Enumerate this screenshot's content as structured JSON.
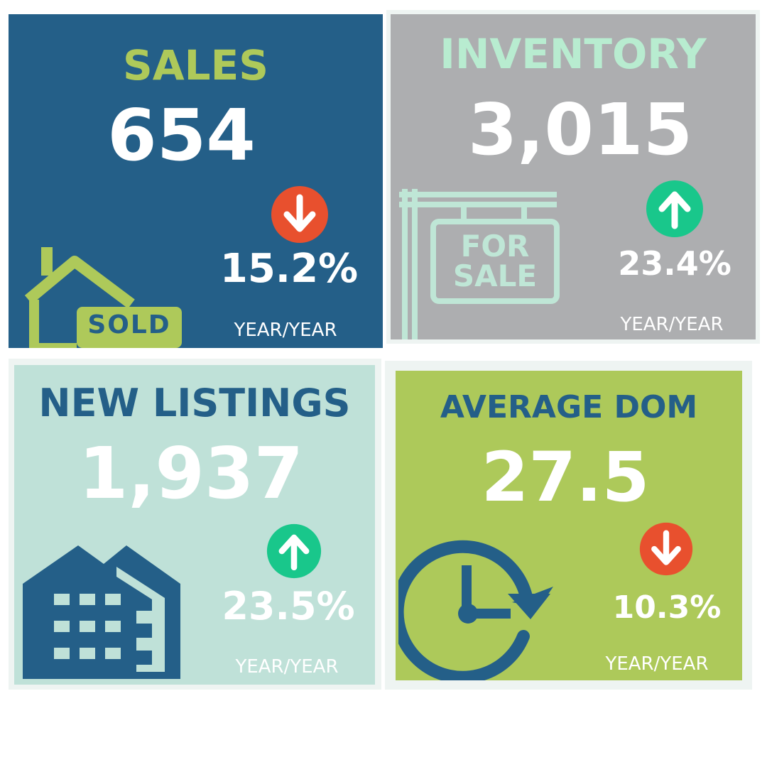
{
  "colors": {
    "sales_bg": "#245f88",
    "inventory_bg": "#adaeb0",
    "listings_bg": "#bfe1d8",
    "dom_bg": "#adc95a",
    "lime": "#aec95a",
    "mint": "#b8ecd0",
    "navy": "#245f88",
    "up": "#19c78b",
    "down": "#e8502e",
    "frame": "#eef4f2"
  },
  "panels": {
    "sales": {
      "title": "SALES",
      "value": "654",
      "change": "15.2%",
      "direction": "down",
      "period": "YEAR/YEAR",
      "icon": "house-sold-icon",
      "sign_text": "SOLD"
    },
    "inventory": {
      "title": "INVENTORY",
      "value": "3,015",
      "change": "23.4%",
      "direction": "up",
      "period": "YEAR/YEAR",
      "icon": "for-sale-sign-icon",
      "sign_line1": "FOR",
      "sign_line2": "SALE"
    },
    "new_listings": {
      "title": "NEW LISTINGS",
      "value": "1,937",
      "change": "23.5%",
      "direction": "up",
      "period": "YEAR/YEAR",
      "icon": "buildings-icon"
    },
    "average_dom": {
      "title": "AVERAGE DOM",
      "value": "27.5",
      "change": "10.3%",
      "direction": "down",
      "period": "YEAR/YEAR",
      "icon": "clock-refresh-icon"
    }
  }
}
